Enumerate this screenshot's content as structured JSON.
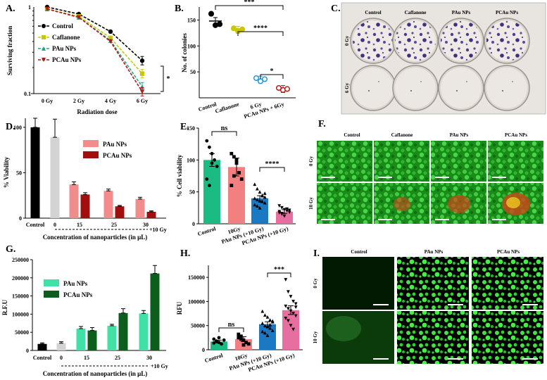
{
  "panels": {
    "A": {
      "letter": "A.",
      "chart_data": {
        "type": "line",
        "ylabel": "Surviving fraction",
        "xlabel": "Radiation dose",
        "yscale": "log",
        "ylim": [
          0.1,
          1
        ],
        "ytick_labels": [
          "1",
          "0.1"
        ],
        "categories": [
          "0 Gy",
          "2 Gy",
          "4 Gy",
          "6 Gy"
        ],
        "series": [
          {
            "name": "Control",
            "values": [
              1.0,
              0.83,
              0.52,
              0.24
            ],
            "color": "#000000",
            "marker": "circle"
          },
          {
            "name": "Caflanone",
            "values": [
              0.95,
              0.78,
              0.44,
              0.17
            ],
            "color": "#c8c800",
            "marker": "square"
          },
          {
            "name": "PAu NPs",
            "values": [
              0.95,
              0.76,
              0.41,
              0.12
            ],
            "color": "#1fa88c",
            "marker": "triangle"
          },
          {
            "name": "PCAu NPs",
            "values": [
              0.95,
              0.76,
              0.4,
              0.105
            ],
            "color": "#b01a1a",
            "marker": "triangle-down"
          }
        ],
        "annotation": "*"
      }
    },
    "B": {
      "letter": "B.",
      "chart_data": {
        "type": "scatter",
        "ylabel": "No. of colonies",
        "ylim": [
          0,
          175
        ],
        "yticks": [
          50,
          100,
          150
        ],
        "categories": [
          "Control",
          "Caflanone",
          "6 Gy",
          "PCAu NPs + 6Gy"
        ],
        "means": [
          148,
          131,
          35,
          17
        ],
        "points": [
          [
            162,
            140,
            142
          ],
          [
            134,
            129,
            132
          ],
          [
            38,
            32,
            36
          ],
          [
            19,
            15,
            17
          ]
        ],
        "colors": [
          "#000000",
          "#c8c800",
          "#1f9ad6",
          "#c01818"
        ],
        "annotations": [
          "***",
          "****",
          "*"
        ]
      }
    },
    "C": {
      "letter": "C.",
      "columns": [
        "Control",
        "Caflanone",
        "PAu NPs",
        "PCAu NPs"
      ],
      "rows": [
        "0 Gy",
        "6 Gy"
      ]
    },
    "D": {
      "letter": "D.",
      "chart_data": {
        "type": "bar",
        "ylabel": "% Viability",
        "xlabel": "Concentration of nanoparticles (in μL)",
        "ylim": [
          0,
          110
        ],
        "yticks": [
          0,
          50,
          100
        ],
        "controls": [
          {
            "label": "Control",
            "value": 100,
            "err": 10,
            "color": "#000000"
          },
          {
            "label": "0",
            "value": 89,
            "err": 20,
            "color": "#d3d3d3"
          }
        ],
        "categories": [
          "15",
          "25",
          "30"
        ],
        "series": [
          {
            "name": "PAu NPs",
            "values": [
              37,
              30,
              21
            ],
            "err": [
              3,
              2,
              2
            ],
            "color": "#f28b8b"
          },
          {
            "name": "PCAu NPs",
            "values": [
              26,
              13,
              7
            ],
            "err": [
              2,
              1,
              1
            ],
            "color": "#a30d0d"
          }
        ],
        "suffix": "+10 Gy"
      }
    },
    "E": {
      "letter": "E.",
      "chart_data": {
        "type": "bar",
        "ylabel": "% Cell viability",
        "ylim": [
          0,
          150
        ],
        "yticks": [
          0,
          50,
          100,
          150
        ],
        "categories": [
          "Control",
          "10Gy",
          "PAu NPs (+10 Gy)",
          "PCAu NPs (+10 Gy)"
        ],
        "values": [
          100,
          89,
          40,
          19
        ],
        "err": [
          10,
          14,
          4,
          3
        ],
        "colors": [
          "#1abc84",
          "#f28080",
          "#1b78c2",
          "#e76fa0"
        ],
        "markers": [
          "circle",
          "square",
          "triangle",
          "triangle-down"
        ],
        "points": [
          [
            130,
            120,
            110,
            100,
            90,
            70,
            60,
            95
          ],
          [
            110,
            105,
            95,
            80,
            70,
            60,
            75,
            100
          ],
          [
            62,
            55,
            50,
            45,
            42,
            40,
            38,
            36,
            35,
            33,
            30,
            28,
            25,
            44,
            48
          ],
          [
            28,
            25,
            22,
            20,
            18,
            17,
            15,
            12,
            23,
            21,
            19,
            16
          ]
        ],
        "annotations": [
          "ns",
          "****"
        ]
      }
    },
    "F": {
      "letter": "F.",
      "columns": [
        "Control",
        "Caflanone",
        "PAu NPs",
        "PCAu NPs"
      ],
      "rows": [
        "0 Gy",
        "10 Gy"
      ]
    },
    "G": {
      "letter": "G.",
      "chart_data": {
        "type": "bar",
        "ylabel": "R.F.U",
        "xlabel": "Concentration of nanoparticles (in μL)",
        "ylim": [
          0,
          250000
        ],
        "yticks": [
          0,
          50000,
          100000,
          150000,
          200000,
          250000
        ],
        "ytick_labels": [
          "0",
          "50000",
          "100000",
          "150000",
          "200000",
          "250000"
        ],
        "controls": [
          {
            "label": "Control",
            "value": 18000,
            "err": 3000,
            "color": "#000000"
          },
          {
            "label": "0",
            "value": 20000,
            "err": 4000,
            "color": "#d3d3d3"
          }
        ],
        "categories": [
          "15",
          "25",
          "30"
        ],
        "series": [
          {
            "name": "PAu NPs",
            "values": [
              60000,
              68000,
              102000
            ],
            "err": [
              6000,
              4000,
              8000
            ],
            "color": "#40e0a8"
          },
          {
            "name": "PCAu NPs",
            "values": [
              55000,
              103000,
              212000
            ],
            "err": [
              8000,
              12000,
              22000
            ],
            "color": "#0b5e1c"
          }
        ],
        "suffix": "+10 Gy"
      }
    },
    "H": {
      "letter": "H.",
      "chart_data": {
        "type": "bar",
        "ylabel": "RFU",
        "ylim": [
          0,
          175000
        ],
        "yticks": [
          0,
          50000,
          100000,
          150000
        ],
        "ytick_labels": [
          "0",
          "50000",
          "100000",
          "150000"
        ],
        "categories": [
          "Control",
          "10Gy",
          "PAu NPs (+10 Gy)",
          "PCAu NPs (+10 Gy)"
        ],
        "values": [
          17000,
          22000,
          53000,
          82000
        ],
        "err": [
          3000,
          5000,
          5000,
          9000
        ],
        "colors": [
          "#1abc84",
          "#f28080",
          "#1b78c2",
          "#e76fa0"
        ],
        "markers": [
          "circle",
          "square",
          "triangle",
          "triangle-down"
        ],
        "points": [
          [
            22000,
            18000,
            15000,
            12000,
            20000,
            14000,
            17000,
            25000
          ],
          [
            32000,
            28000,
            20000,
            15000,
            12000,
            25000,
            22000,
            10000
          ],
          [
            80000,
            72000,
            68000,
            62000,
            58000,
            55000,
            50000,
            48000,
            45000,
            40000,
            38000,
            35000,
            30000,
            52000,
            60000
          ],
          [
            145000,
            120000,
            110000,
            100000,
            95000,
            90000,
            85000,
            80000,
            75000,
            70000,
            65000,
            60000,
            50000,
            42000,
            88000
          ]
        ],
        "annotations": [
          "ns",
          "***"
        ]
      }
    },
    "I": {
      "letter": "I.",
      "columns": [
        "Control",
        "PAu NPs",
        "PCAu NPs"
      ],
      "rows": [
        "0 Gy",
        "10 Gy"
      ]
    }
  }
}
